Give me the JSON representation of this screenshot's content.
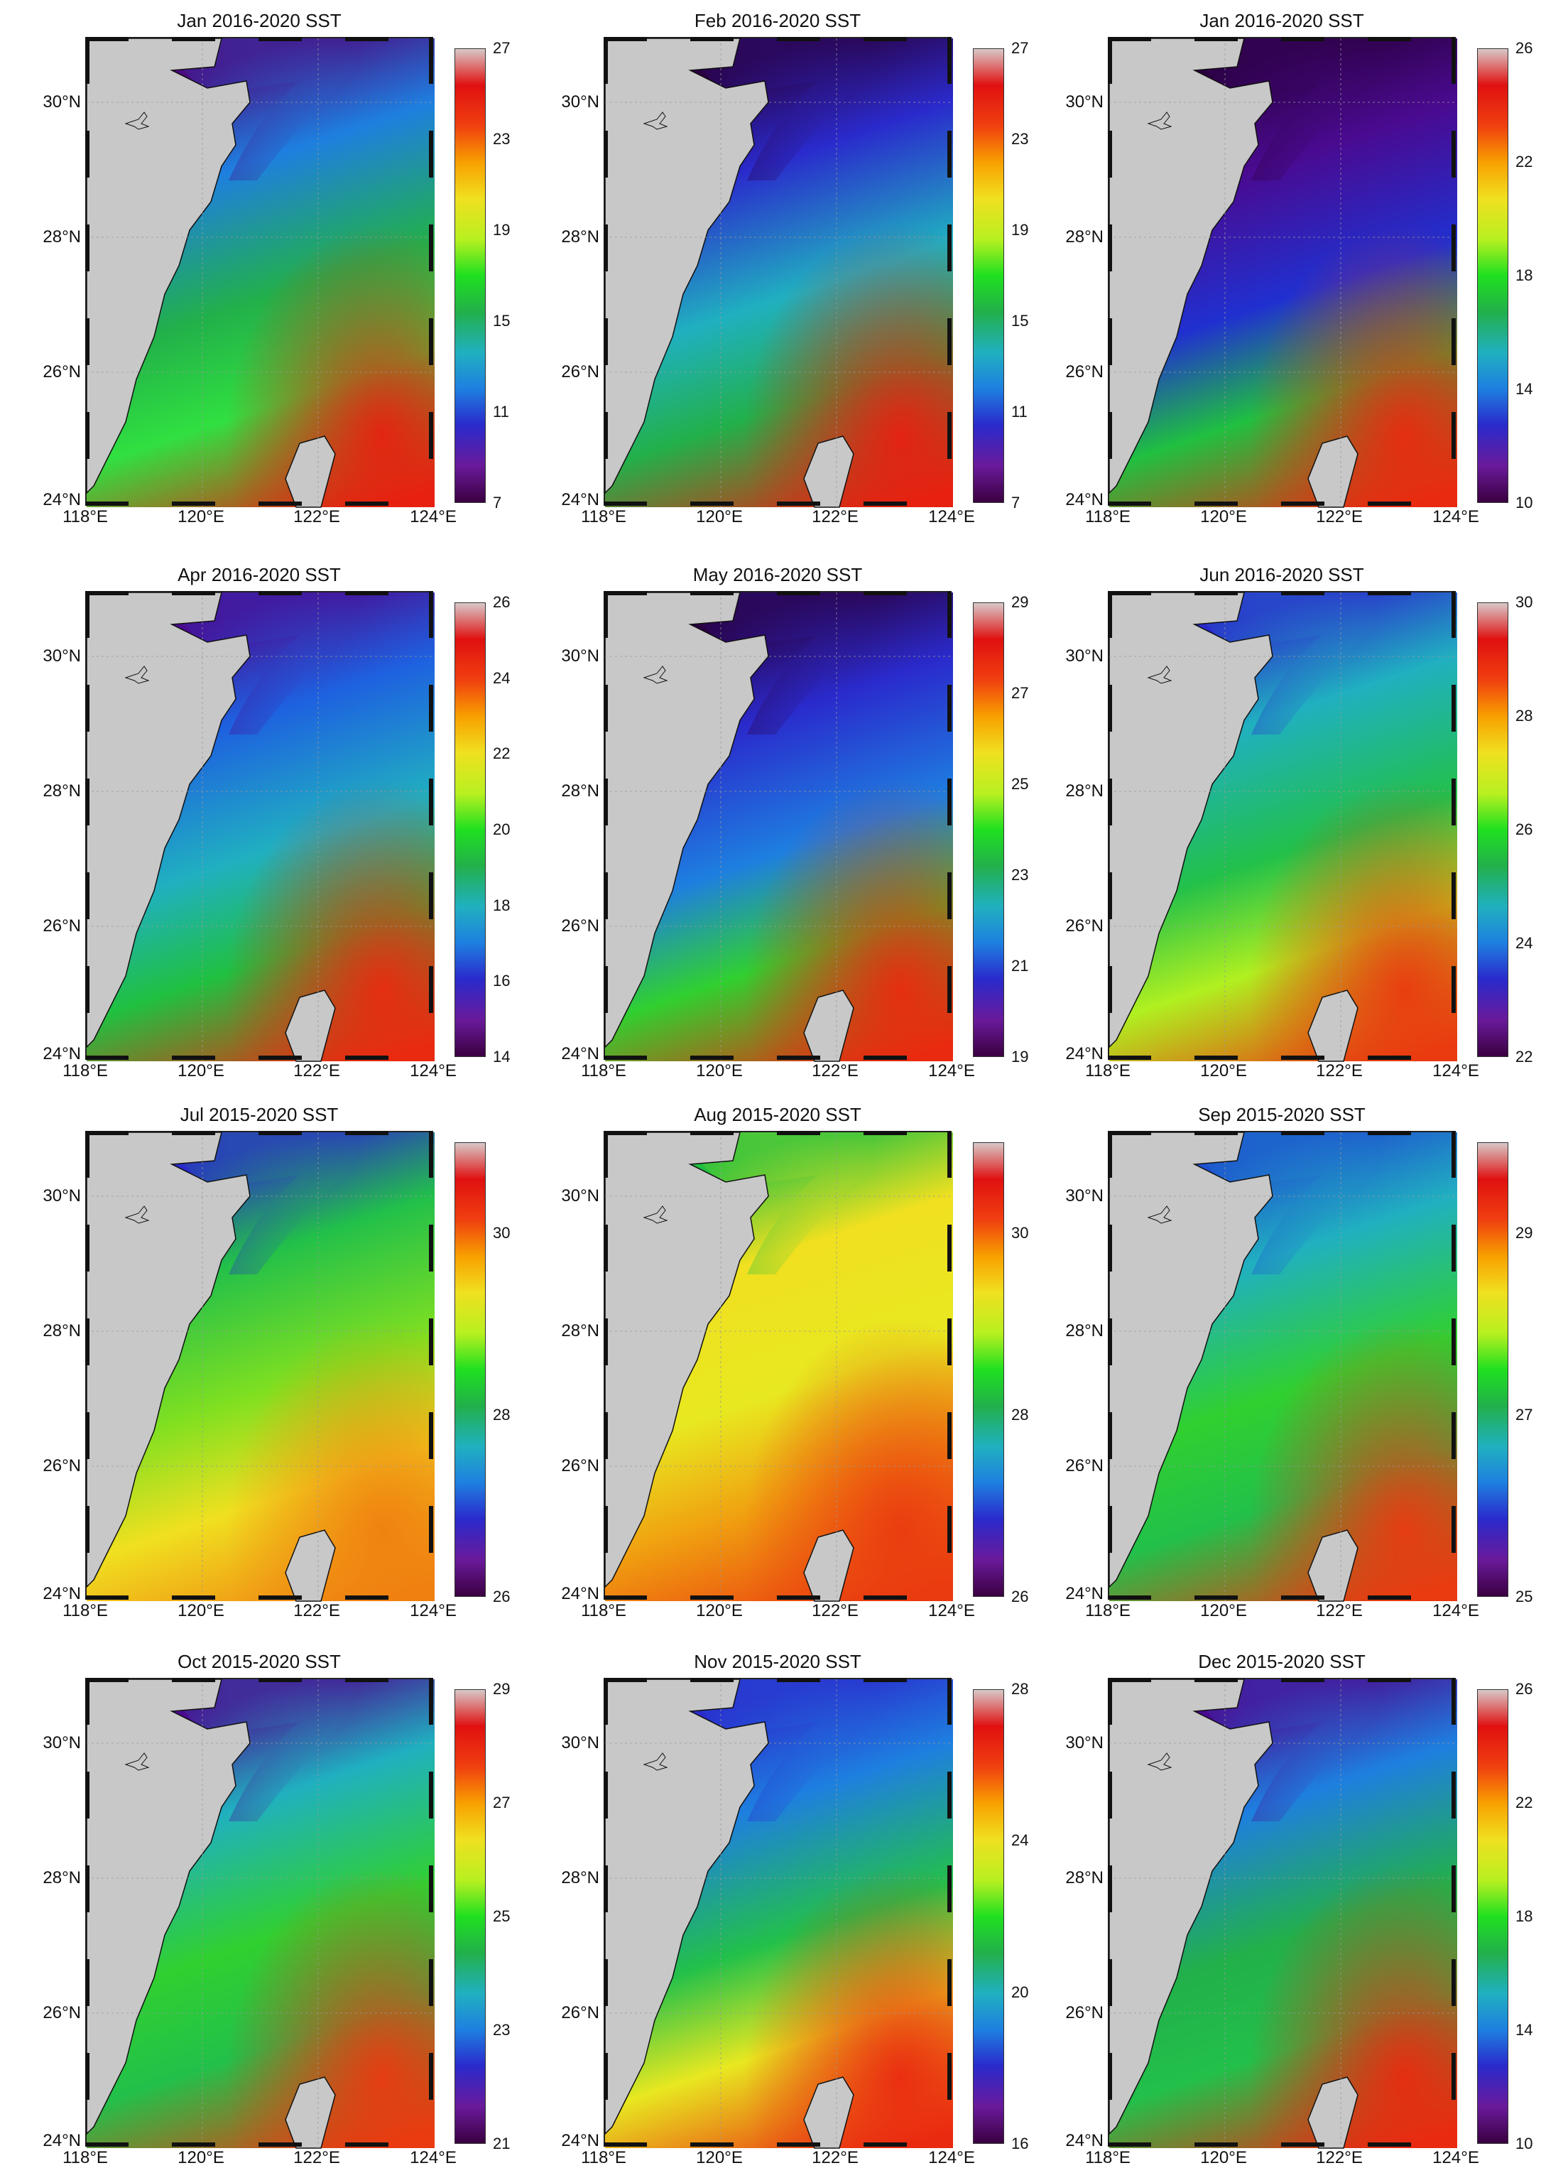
{
  "figure": {
    "panels": [
      {
        "title": "Jan 2016-2020 SST",
        "cb_ticks": [
          "27",
          "23",
          "19",
          "15",
          "11",
          "7"
        ],
        "cb_min": 7,
        "cb_max": 27
      },
      {
        "title": "Feb 2016-2020 SST",
        "cb_ticks": [
          "27",
          "23",
          "19",
          "15",
          "11",
          "7"
        ],
        "cb_min": 7,
        "cb_max": 27
      },
      {
        "title": "Jan 2016-2020 SST",
        "cb_ticks": [
          "26",
          "22",
          "18",
          "14",
          "10"
        ],
        "cb_min": 10,
        "cb_max": 26
      },
      {
        "title": "Apr 2016-2020 SST",
        "cb_ticks": [
          "26",
          "24",
          "22",
          "20",
          "18",
          "16",
          "14"
        ],
        "cb_min": 14,
        "cb_max": 26
      },
      {
        "title": "May 2016-2020 SST",
        "cb_ticks": [
          "29",
          "27",
          "25",
          "23",
          "21",
          "19"
        ],
        "cb_min": 19,
        "cb_max": 29
      },
      {
        "title": "Jun 2016-2020 SST",
        "cb_ticks": [
          "30",
          "28",
          "26",
          "24",
          "22"
        ],
        "cb_min": 22,
        "cb_max": 30
      },
      {
        "title": "Jul 2015-2020 SST",
        "cb_ticks": [
          "30",
          "28",
          "26"
        ],
        "cb_min": 26,
        "cb_max": 31
      },
      {
        "title": "Aug 2015-2020 SST",
        "cb_ticks": [
          "30",
          "28",
          "26"
        ],
        "cb_min": 26,
        "cb_max": 31
      },
      {
        "title": "Sep 2015-2020 SST",
        "cb_ticks": [
          "29",
          "27",
          "25"
        ],
        "cb_min": 25,
        "cb_max": 30
      },
      {
        "title": "Oct 2015-2020 SST",
        "cb_ticks": [
          "29",
          "27",
          "25",
          "23",
          "21"
        ],
        "cb_min": 21,
        "cb_max": 29
      },
      {
        "title": "Nov 2015-2020 SST",
        "cb_ticks": [
          "28",
          "24",
          "20",
          "16"
        ],
        "cb_min": 16,
        "cb_max": 28
      },
      {
        "title": "Dec 2015-2020 SST",
        "cb_ticks": [
          "26",
          "22",
          "18",
          "14",
          "10"
        ],
        "cb_min": 10,
        "cb_max": 26
      }
    ],
    "lat_labels": [
      "30°N",
      "28°N",
      "26°N",
      "24°N"
    ],
    "lon_labels": [
      "118°E",
      "120°E",
      "122°E",
      "124°E"
    ],
    "colormap": [
      "#3a0040",
      "#6a1a9a",
      "#2a2acc",
      "#1e7fe0",
      "#20b0c0",
      "#22b04a",
      "#20e020",
      "#b8f020",
      "#f0e020",
      "#f8a000",
      "#f04010",
      "#e01010",
      "#d8c8c8"
    ],
    "land_color": "#c8c8c8"
  }
}
